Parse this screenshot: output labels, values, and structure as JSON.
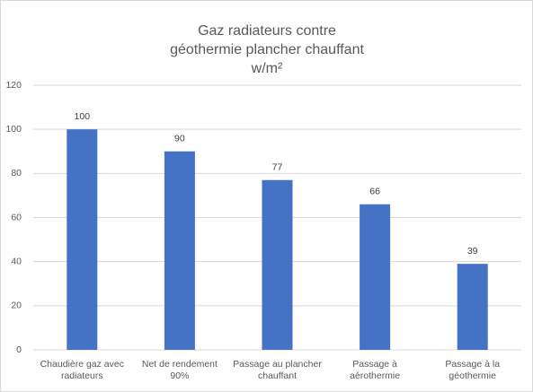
{
  "chart_data": {
    "type": "bar",
    "title": [
      "Gaz radiateurs contre",
      "géothermie plancher chauffant",
      "w/m²"
    ],
    "categories": [
      "Chaudière gaz avec radiateurs",
      "Net de rendement 90%",
      "Passage au plancher chauffant",
      "Passage à aérothermie",
      "Passage à la géothermie"
    ],
    "values": [
      100,
      90,
      77,
      66,
      39
    ],
    "color": "#4472c4",
    "ylim": [
      0,
      120
    ],
    "yticks": [
      0,
      20,
      40,
      60,
      80,
      100,
      120
    ],
    "grid": true
  }
}
